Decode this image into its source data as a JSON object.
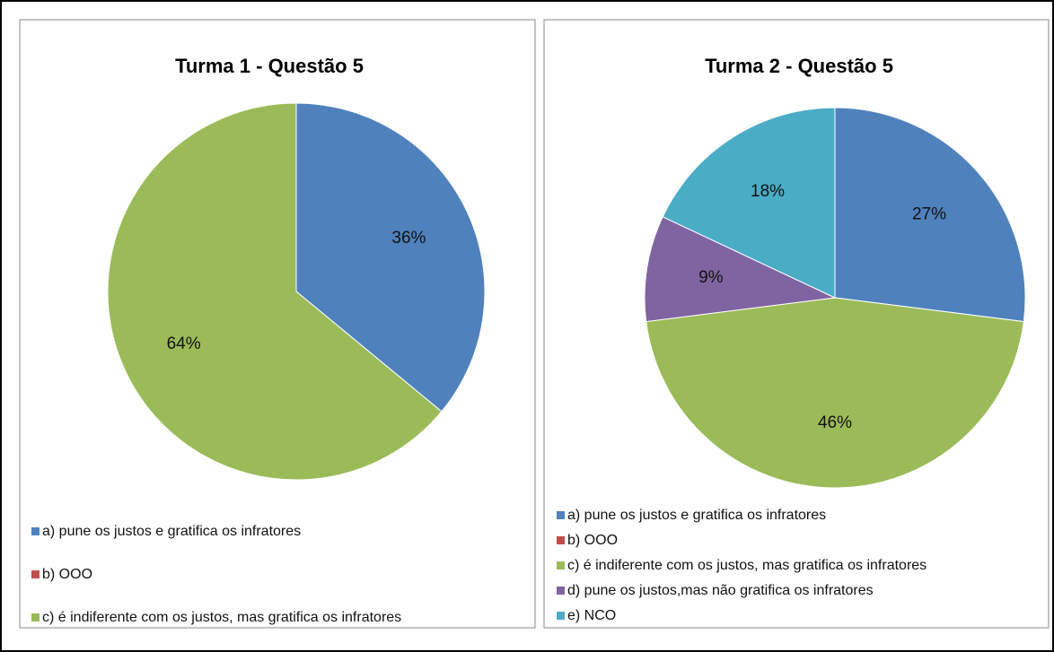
{
  "chart_data": [
    {
      "type": "pie",
      "title": "Turma 1 - Questão 5",
      "categories": [
        "a) pune os justos e gratifica os infratores",
        "b) OOO",
        "c) é indiferente com os justos, mas gratifica os infratores"
      ],
      "values": [
        36,
        0,
        64
      ],
      "value_labels": [
        "36%",
        null,
        "64%"
      ],
      "colors": [
        "#4f81bd",
        "#c0504d",
        "#9bbb59"
      ],
      "legend": "bottom"
    },
    {
      "type": "pie",
      "title": "Turma 2 - Questão 5",
      "categories": [
        "a) pune os justos e gratifica os infratores",
        "b) OOO",
        "c) é indiferente com os justos, mas gratifica os infratores",
        "d) pune os justos,mas não gratifica os infratores",
        "e) NCO"
      ],
      "values": [
        27,
        0,
        46,
        9,
        18
      ],
      "value_labels": [
        "27%",
        null,
        "46%",
        "9%",
        "18%"
      ],
      "colors": [
        "#4f81bd",
        "#c0504d",
        "#9bbb59",
        "#8064a2",
        "#4bacc6"
      ],
      "legend": "bottom"
    }
  ]
}
